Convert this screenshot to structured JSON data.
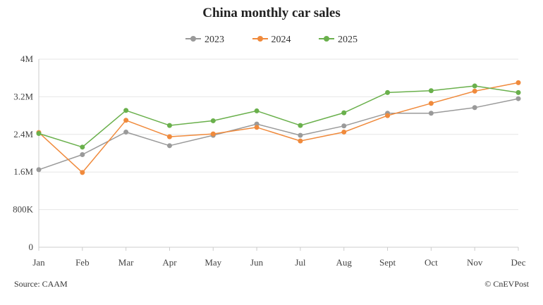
{
  "chart_data": {
    "type": "line",
    "title": "China monthly car sales",
    "categories": [
      "Jan",
      "Feb",
      "Mar",
      "Apr",
      "May",
      "Jun",
      "Jul",
      "Aug",
      "Sept",
      "Oct",
      "Nov",
      "Dec"
    ],
    "y_ticks": [
      {
        "value": 0,
        "label": "0"
      },
      {
        "value": 800000,
        "label": "800K"
      },
      {
        "value": 1600000,
        "label": "1.6M"
      },
      {
        "value": 2400000,
        "label": "2.4M"
      },
      {
        "value": 3200000,
        "label": "3.2M"
      },
      {
        "value": 4000000,
        "label": "4M"
      }
    ],
    "ylim": [
      0,
      4000000
    ],
    "grid": true,
    "legend_position": "top-center",
    "series": [
      {
        "name": "2023",
        "color": "#9a9a9a",
        "values": [
          1650000,
          1970000,
          2450000,
          2160000,
          2380000,
          2620000,
          2380000,
          2580000,
          2850000,
          2850000,
          2970000,
          3160000
        ]
      },
      {
        "name": "2024",
        "color": "#f08a3c",
        "values": [
          2440000,
          1590000,
          2700000,
          2350000,
          2410000,
          2550000,
          2260000,
          2450000,
          2800000,
          3060000,
          3320000,
          3500000
        ]
      },
      {
        "name": "2025",
        "color": "#6ab04c",
        "values": [
          2420000,
          2130000,
          2910000,
          2590000,
          2690000,
          2900000,
          2590000,
          2860000,
          3290000,
          3330000,
          3430000,
          3290000
        ]
      }
    ]
  },
  "footer": {
    "source": "Source: CAAM",
    "credit": "© CnEVPost"
  }
}
